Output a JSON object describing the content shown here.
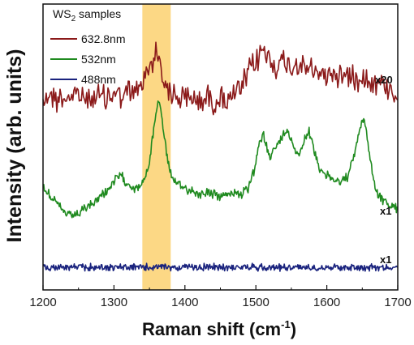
{
  "chart_data": {
    "type": "line",
    "xlabel": "Raman shift (cm",
    "xlabel_sup": "-1",
    "xlabel_tail": ")",
    "ylabel": "Intensity (arb. units)",
    "xlim": [
      1200,
      1700
    ],
    "xticks": [
      "1200",
      "1300",
      "1400",
      "1500",
      "1600",
      "1700"
    ],
    "grid": false,
    "legend": {
      "title_main": "WS",
      "title_sub": "2",
      "title_tail": " samples",
      "placement": "top-left"
    },
    "highlight_band": {
      "x_start": 1340,
      "x_end": 1380,
      "color": "#fcd885"
    },
    "series": [
      {
        "name": "632.8nm",
        "color": "#8b1a1a",
        "multiplier": "x20",
        "x": [
          1200,
          1210,
          1220,
          1230,
          1240,
          1250,
          1260,
          1270,
          1280,
          1290,
          1300,
          1310,
          1320,
          1330,
          1340,
          1350,
          1355,
          1360,
          1365,
          1370,
          1380,
          1390,
          1400,
          1410,
          1420,
          1430,
          1440,
          1450,
          1460,
          1470,
          1480,
          1490,
          1500,
          1505,
          1510,
          1515,
          1520,
          1530,
          1540,
          1550,
          1560,
          1570,
          1580,
          1590,
          1600,
          1610,
          1620,
          1630,
          1640,
          1650,
          1660,
          1670,
          1680,
          1690,
          1700
        ],
        "y": [
          0.4,
          0.45,
          0.38,
          0.42,
          0.4,
          0.44,
          0.39,
          0.41,
          0.43,
          0.4,
          0.46,
          0.42,
          0.45,
          0.48,
          0.55,
          0.75,
          0.85,
          0.92,
          0.8,
          0.62,
          0.45,
          0.42,
          0.38,
          0.4,
          0.37,
          0.41,
          0.36,
          0.4,
          0.38,
          0.42,
          0.5,
          0.7,
          0.78,
          0.88,
          0.95,
          0.9,
          0.82,
          0.76,
          0.8,
          0.75,
          0.78,
          0.72,
          0.7,
          0.68,
          0.65,
          0.7,
          0.64,
          0.66,
          0.62,
          0.67,
          0.6,
          0.58,
          0.55,
          0.5,
          0.45
        ]
      },
      {
        "name": "532nm",
        "color": "#1f8a1f",
        "multiplier": "x1",
        "x": [
          1200,
          1210,
          1220,
          1230,
          1240,
          1250,
          1260,
          1270,
          1280,
          1290,
          1300,
          1305,
          1310,
          1315,
          1320,
          1330,
          1340,
          1350,
          1355,
          1360,
          1363,
          1366,
          1370,
          1375,
          1380,
          1385,
          1390,
          1400,
          1410,
          1420,
          1430,
          1440,
          1450,
          1460,
          1470,
          1480,
          1490,
          1500,
          1505,
          1510,
          1515,
          1520,
          1530,
          1540,
          1545,
          1550,
          1555,
          1560,
          1570,
          1575,
          1580,
          1590,
          1600,
          1610,
          1620,
          1630,
          1640,
          1645,
          1650,
          1655,
          1660,
          1665,
          1670,
          1680,
          1690,
          1700
        ],
        "y": [
          0.35,
          0.3,
          0.22,
          0.15,
          0.12,
          0.14,
          0.18,
          0.22,
          0.28,
          0.33,
          0.4,
          0.44,
          0.45,
          0.42,
          0.38,
          0.35,
          0.38,
          0.55,
          0.8,
          1.0,
          1.08,
          1.0,
          0.82,
          0.6,
          0.48,
          0.4,
          0.38,
          0.35,
          0.33,
          0.3,
          0.32,
          0.3,
          0.28,
          0.3,
          0.32,
          0.3,
          0.35,
          0.55,
          0.72,
          0.8,
          0.7,
          0.62,
          0.7,
          0.8,
          0.82,
          0.75,
          0.68,
          0.62,
          0.78,
          0.82,
          0.7,
          0.52,
          0.45,
          0.42,
          0.4,
          0.45,
          0.65,
          0.8,
          0.92,
          0.85,
          0.65,
          0.45,
          0.32,
          0.25,
          0.2,
          0.18
        ]
      },
      {
        "name": "488nm",
        "color": "#1a237e",
        "multiplier": "x1",
        "x": [
          1200,
          1250,
          1300,
          1350,
          1400,
          1450,
          1500,
          1550,
          1600,
          1650,
          1700
        ],
        "y": [
          0.0,
          0.0,
          0.0,
          0.0,
          0.0,
          0.0,
          0.0,
          0.0,
          0.0,
          0.0,
          0.0
        ]
      }
    ]
  }
}
